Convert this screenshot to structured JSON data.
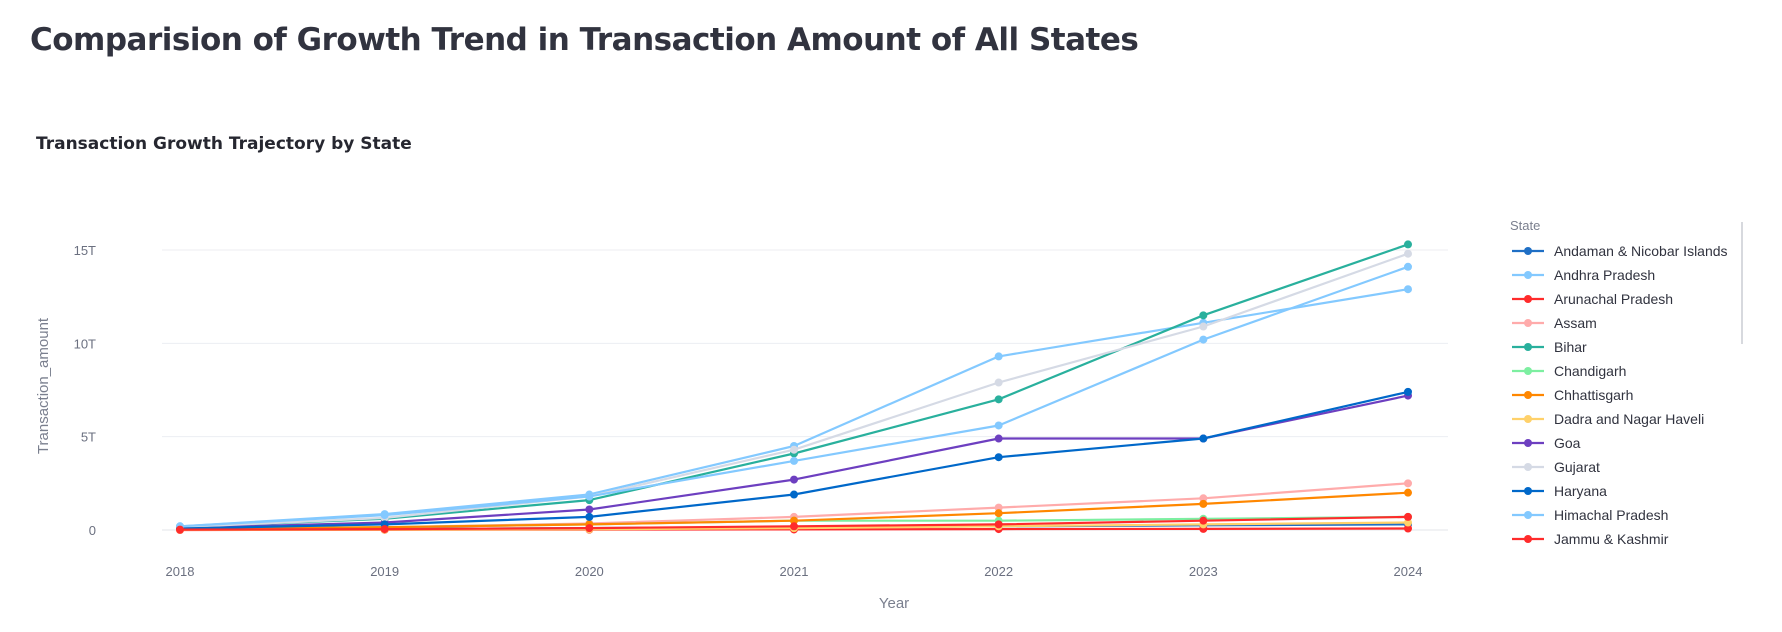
{
  "page": {
    "title": "Comparision of Growth Trend in Transaction Amount of All States"
  },
  "chart_data": {
    "type": "line",
    "title": "Transaction Growth Trajectory by State",
    "xlabel": "Year",
    "ylabel": "Transaction_amount",
    "x": [
      2018,
      2019,
      2020,
      2021,
      2022,
      2023,
      2024
    ],
    "x_tick_labels": [
      "2018",
      "2019",
      "2020",
      "2021",
      "2022",
      "2023",
      "2024"
    ],
    "y_ticks": [
      0,
      5,
      10,
      15
    ],
    "y_tick_labels": [
      "0",
      "5T",
      "10T",
      "15T"
    ],
    "y_units": "trillions",
    "ylim": [
      0,
      16.5
    ],
    "grid": "horizontal",
    "legend": {
      "title": "State",
      "placement": "right"
    },
    "series": [
      {
        "name": "Andaman & Nicobar Islands",
        "color": "#1f6fc5",
        "values": [
          0.02,
          0.05,
          0.1,
          0.15,
          0.2,
          0.25,
          0.3
        ]
      },
      {
        "name": "Andhra Pradesh",
        "color": "#83c9ff",
        "values": [
          0.2,
          0.85,
          1.9,
          4.5,
          9.3,
          11.1,
          12.9
        ]
      },
      {
        "name": "Arunachal Pradesh",
        "color": "#ff2b2b",
        "values": [
          0.0,
          0.01,
          0.02,
          0.03,
          0.05,
          0.06,
          0.08
        ]
      },
      {
        "name": "Assam",
        "color": "#ffabab",
        "values": [
          0.05,
          0.15,
          0.35,
          0.7,
          1.2,
          1.7,
          2.5
        ]
      },
      {
        "name": "Bihar",
        "color": "#29b09d",
        "values": [
          0.15,
          0.6,
          1.6,
          4.1,
          7.0,
          11.5,
          15.3
        ]
      },
      {
        "name": "Chandigarh",
        "color": "#7defa1",
        "values": [
          0.05,
          0.15,
          0.3,
          0.5,
          0.5,
          0.6,
          0.7
        ]
      },
      {
        "name": "Chhattisgarh",
        "color": "#ff8700",
        "values": [
          0.05,
          0.15,
          0.3,
          0.5,
          0.9,
          1.4,
          2.0
        ]
      },
      {
        "name": "Dadra and Nagar Haveli",
        "color": "#ffd16a",
        "values": [
          0.01,
          0.02,
          0.04,
          0.1,
          0.2,
          0.3,
          0.4
        ]
      },
      {
        "name": "Goa",
        "color": "#6d3fc0",
        "values": [
          0.1,
          0.4,
          1.1,
          2.7,
          4.9,
          4.9,
          7.2
        ]
      },
      {
        "name": "Gujarat",
        "color": "#d5dae5",
        "values": [
          0.15,
          0.65,
          1.8,
          4.3,
          7.9,
          10.9,
          14.8
        ]
      },
      {
        "name": "Haryana",
        "color": "#0068c9",
        "values": [
          0.08,
          0.3,
          0.7,
          1.9,
          3.9,
          4.9,
          7.4
        ]
      },
      {
        "name": "Himachal Pradesh",
        "color": "#83c9ff",
        "values": [
          0.2,
          0.8,
          1.8,
          3.7,
          5.6,
          10.2,
          14.1
        ]
      },
      {
        "name": "Jammu & Kashmir",
        "color": "#ff2b2b",
        "values": [
          0.02,
          0.05,
          0.1,
          0.2,
          0.3,
          0.5,
          0.7
        ]
      }
    ]
  }
}
